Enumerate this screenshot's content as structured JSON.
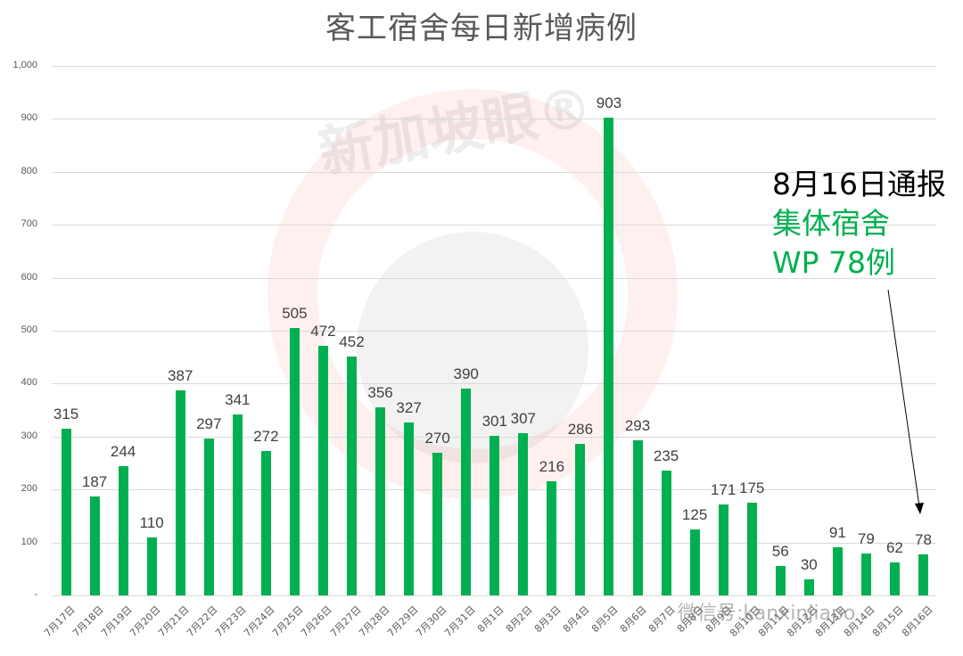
{
  "chart_data": {
    "type": "bar",
    "title": "客工宿舍每日新增病例",
    "xlabel": "",
    "ylabel": "",
    "ylim": [
      0,
      1000
    ],
    "yticks": [
      "-",
      "100",
      "200",
      "300",
      "400",
      "500",
      "600",
      "700",
      "800",
      "900",
      "1,000"
    ],
    "grid": true,
    "legend": null,
    "bar_color": "#00b050",
    "categories": [
      "7月17日",
      "7月18日",
      "7月19日",
      "7月20日",
      "7月21日",
      "7月22日",
      "7月23日",
      "7月24日",
      "7月25日",
      "7月26日",
      "7月27日",
      "7月28日",
      "7月29日",
      "7月30日",
      "7月31日",
      "8月1日",
      "8月2日",
      "8月3日",
      "8月4日",
      "8月5日",
      "8月6日",
      "8月7日",
      "8月8日",
      "8月9日",
      "8月10日",
      "8月11日",
      "8月12日",
      "8月13日",
      "8月14日",
      "8月15日",
      "8月16日"
    ],
    "values": [
      315,
      187,
      244,
      110,
      387,
      297,
      341,
      272,
      505,
      472,
      452,
      356,
      327,
      270,
      390,
      301,
      307,
      216,
      286,
      903,
      293,
      235,
      125,
      171,
      175,
      56,
      30,
      91,
      79,
      62,
      78
    ],
    "annotations": [
      {
        "text": "8月16日通报",
        "color": "#000000"
      },
      {
        "text": "集体宿舍",
        "color": "#00b050"
      },
      {
        "text": "WP 78例",
        "color": "#00b050"
      }
    ]
  },
  "watermark": {
    "logo_text": "新加坡眼®",
    "wechat_text": "微信号:kanxinjiapo"
  }
}
